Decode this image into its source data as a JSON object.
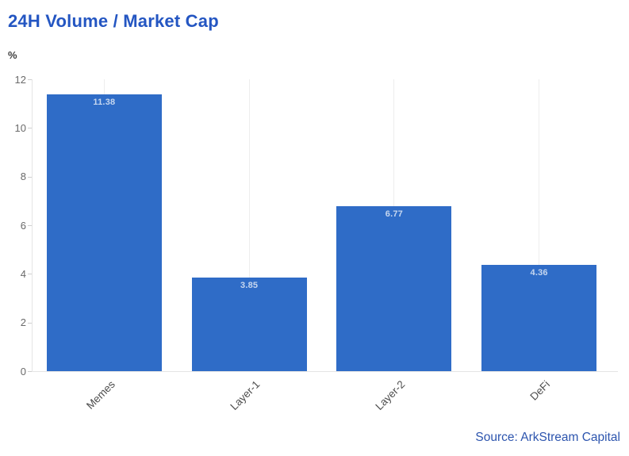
{
  "source": {
    "text": "Source: ArkStream Capital"
  },
  "colors": {
    "title": "#2456c2",
    "bar": "#2f6cc7",
    "bar_label": "rgba(255,255,255,0.72)",
    "tick_label": "#6a6a6a",
    "category_label": "#4d4d4d",
    "gridline": "#ededed",
    "axis_line": "#e4e4e4",
    "source_text": "#2d55ae",
    "background": "#ffffff"
  },
  "chart_data": {
    "type": "bar",
    "title": "24H Volume / Market Cap",
    "categories": [
      "Memes",
      "Layer-1",
      "Layer-2",
      "DeFi"
    ],
    "values": [
      11.38,
      3.85,
      6.77,
      4.36
    ],
    "data_labels": [
      "11.38",
      "3.85",
      "6.77",
      "4.36"
    ],
    "xlabel": "",
    "ylabel": "%",
    "ylim": [
      0,
      12
    ],
    "yticks": [
      0,
      2,
      4,
      6,
      8,
      10,
      12
    ],
    "grid": "vertical-lines-at-category-centers",
    "legend": "none",
    "bar_orientation": "vertical",
    "category_label_rotation_deg": -45,
    "value_labels_position": "inside-top"
  }
}
